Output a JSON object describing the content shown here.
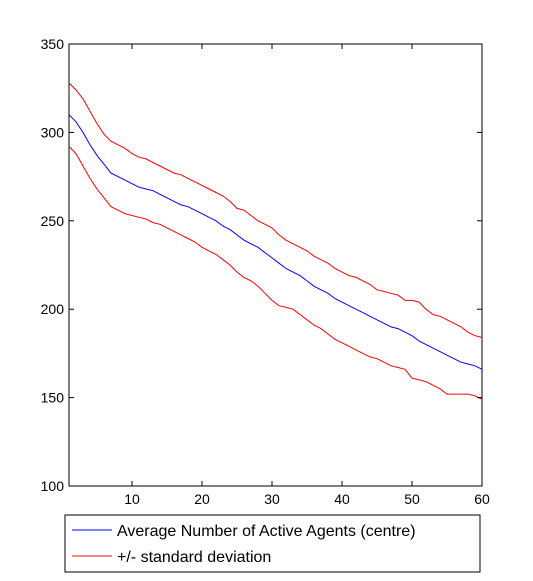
{
  "chart_data": {
    "type": "line",
    "title": "",
    "xlabel": "",
    "ylabel": "",
    "xlim": [
      1,
      60
    ],
    "ylim": [
      100,
      350
    ],
    "xticks": [
      10,
      20,
      30,
      40,
      50,
      60
    ],
    "yticks": [
      100,
      150,
      200,
      250,
      300,
      350
    ],
    "grid": false,
    "legend_position": "bottom",
    "x": [
      1,
      2,
      3,
      4,
      5,
      6,
      7,
      8,
      9,
      10,
      11,
      12,
      13,
      14,
      15,
      16,
      17,
      18,
      19,
      20,
      21,
      22,
      23,
      24,
      25,
      26,
      27,
      28,
      29,
      30,
      31,
      32,
      33,
      34,
      35,
      36,
      37,
      38,
      39,
      40,
      41,
      42,
      43,
      44,
      45,
      46,
      47,
      48,
      49,
      50,
      51,
      52,
      53,
      54,
      55,
      56,
      57,
      58,
      59,
      60
    ],
    "series": [
      {
        "name": "Average Number of Active Agents (centre)",
        "color": "#0000ff",
        "values": [
          310,
          306,
          300,
          293,
          287,
          282,
          277,
          275,
          273,
          271,
          269,
          268,
          267,
          265,
          263,
          261,
          259,
          258,
          256,
          254,
          252,
          250,
          247,
          245,
          242,
          239,
          237,
          235,
          232,
          229,
          226,
          223,
          221,
          219,
          216,
          213,
          211,
          209,
          206,
          204,
          202,
          200,
          198,
          196,
          194,
          192,
          190,
          189,
          187,
          185,
          182,
          180,
          178,
          176,
          174,
          172,
          170,
          169,
          168,
          166
        ]
      },
      {
        "name": "+/- standard deviation",
        "color": "#ff0000",
        "values": [
          328,
          324,
          319,
          312,
          305,
          299,
          295,
          293,
          291,
          288,
          286,
          285,
          283,
          281,
          279,
          277,
          276,
          274,
          272,
          270,
          268,
          266,
          264,
          261,
          257,
          256,
          253,
          250,
          248,
          246,
          242,
          239,
          237,
          235,
          233,
          230,
          228,
          226,
          223,
          221,
          219,
          218,
          216,
          214,
          211,
          210,
          209,
          208,
          205,
          205,
          204,
          200,
          197,
          196,
          194,
          192,
          190,
          187,
          185,
          184
        ]
      },
      {
        "name": "",
        "color": "#ff0000",
        "values": [
          292,
          288,
          281,
          274,
          268,
          263,
          258,
          256,
          254,
          253,
          252,
          251,
          249,
          248,
          246,
          244,
          242,
          240,
          238,
          235,
          233,
          231,
          228,
          225,
          221,
          218,
          216,
          213,
          209,
          205,
          202,
          201,
          200,
          197,
          194,
          191,
          189,
          186,
          183,
          181,
          179,
          177,
          175,
          173,
          172,
          170,
          168,
          167,
          166,
          161,
          160,
          159,
          157,
          155,
          152,
          152,
          152,
          152,
          151,
          149
        ]
      }
    ],
    "legend": [
      {
        "label": "Average Number of Active Agents (centre)",
        "color": "#0000ff"
      },
      {
        "label": "+/- standard deviation",
        "color": "#ff0000"
      }
    ]
  }
}
